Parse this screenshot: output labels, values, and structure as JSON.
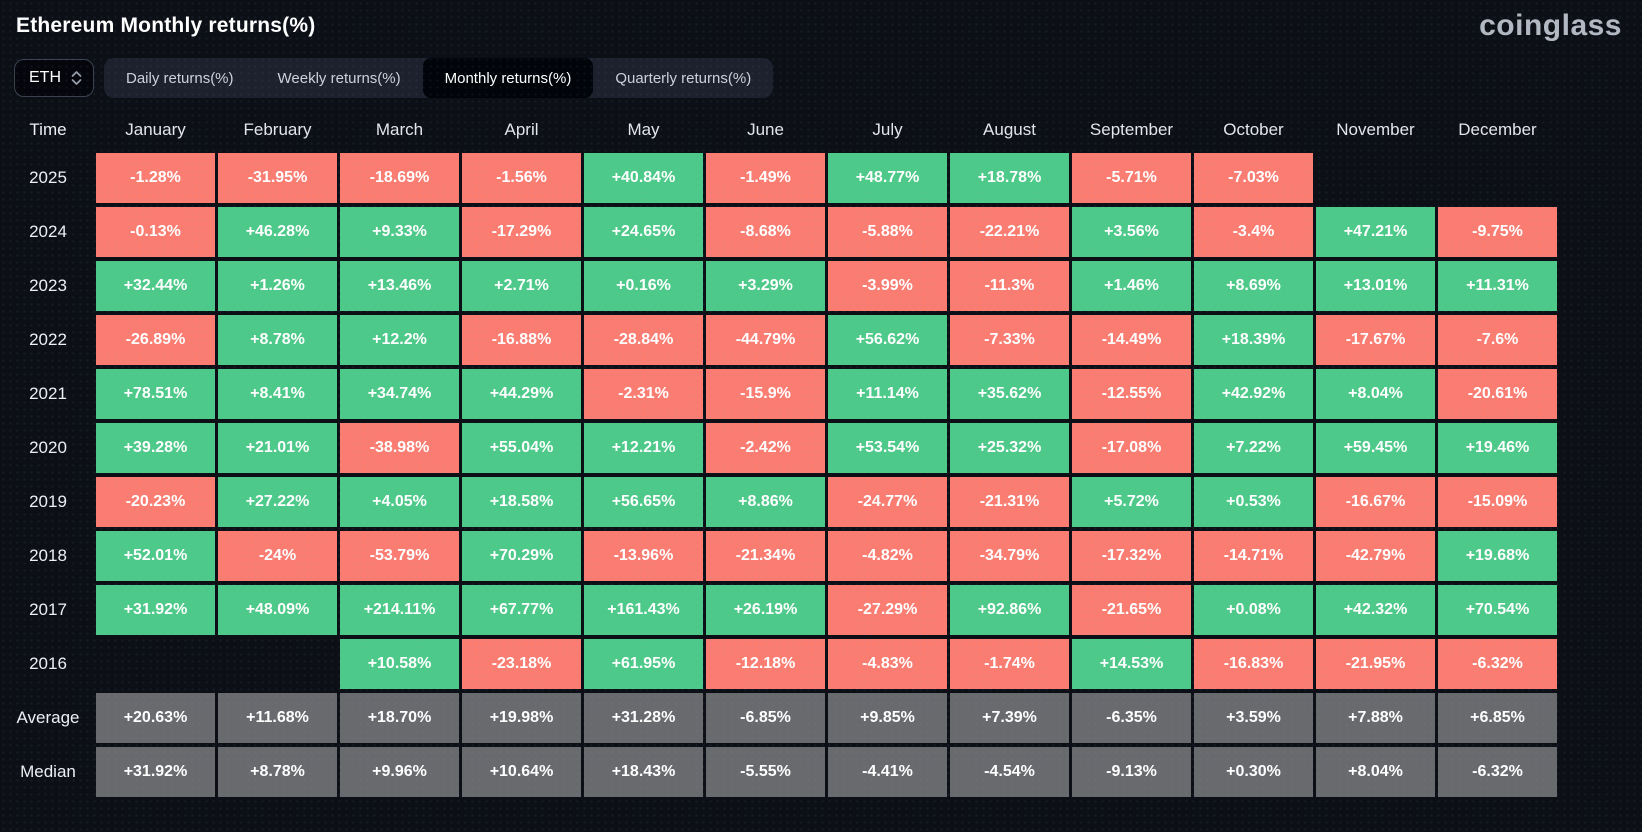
{
  "header": {
    "title": "Ethereum Monthly returns(%)",
    "logo_text": "coinglass"
  },
  "controls": {
    "symbol_select": {
      "value": "ETH"
    },
    "tabs": [
      {
        "label": "Daily returns(%)",
        "active": false
      },
      {
        "label": "Weekly returns(%)",
        "active": false
      },
      {
        "label": "Monthly returns(%)",
        "active": true
      },
      {
        "label": "Quarterly returns(%)",
        "active": false
      }
    ]
  },
  "colors": {
    "positive": "#4dca89",
    "negative": "#fb7d72",
    "summary_row": "#696a6e",
    "background": "#0c0f16",
    "tabbar_bg": "#1c212d",
    "active_tab_bg": "#010409"
  },
  "chart_data": {
    "type": "table",
    "title": "Ethereum Monthly returns(%)",
    "columns": [
      "Time",
      "January",
      "February",
      "March",
      "April",
      "May",
      "June",
      "July",
      "August",
      "September",
      "October",
      "November",
      "December"
    ],
    "rows": [
      {
        "label": "2025",
        "summary": false,
        "values": [
          "-1.28%",
          "-31.95%",
          "-18.69%",
          "-1.56%",
          "+40.84%",
          "-1.49%",
          "+48.77%",
          "+18.78%",
          "-5.71%",
          "-7.03%",
          "",
          ""
        ]
      },
      {
        "label": "2024",
        "summary": false,
        "values": [
          "-0.13%",
          "+46.28%",
          "+9.33%",
          "-17.29%",
          "+24.65%",
          "-8.68%",
          "-5.88%",
          "-22.21%",
          "+3.56%",
          "-3.4%",
          "+47.21%",
          "-9.75%"
        ]
      },
      {
        "label": "2023",
        "summary": false,
        "values": [
          "+32.44%",
          "+1.26%",
          "+13.46%",
          "+2.71%",
          "+0.16%",
          "+3.29%",
          "-3.99%",
          "-11.3%",
          "+1.46%",
          "+8.69%",
          "+13.01%",
          "+11.31%"
        ]
      },
      {
        "label": "2022",
        "summary": false,
        "values": [
          "-26.89%",
          "+8.78%",
          "+12.2%",
          "-16.88%",
          "-28.84%",
          "-44.79%",
          "+56.62%",
          "-7.33%",
          "-14.49%",
          "+18.39%",
          "-17.67%",
          "-7.6%"
        ]
      },
      {
        "label": "2021",
        "summary": false,
        "values": [
          "+78.51%",
          "+8.41%",
          "+34.74%",
          "+44.29%",
          "-2.31%",
          "-15.9%",
          "+11.14%",
          "+35.62%",
          "-12.55%",
          "+42.92%",
          "+8.04%",
          "-20.61%"
        ]
      },
      {
        "label": "2020",
        "summary": false,
        "values": [
          "+39.28%",
          "+21.01%",
          "-38.98%",
          "+55.04%",
          "+12.21%",
          "-2.42%",
          "+53.54%",
          "+25.32%",
          "-17.08%",
          "+7.22%",
          "+59.45%",
          "+19.46%"
        ]
      },
      {
        "label": "2019",
        "summary": false,
        "values": [
          "-20.23%",
          "+27.22%",
          "+4.05%",
          "+18.58%",
          "+56.65%",
          "+8.86%",
          "-24.77%",
          "-21.31%",
          "+5.72%",
          "+0.53%",
          "-16.67%",
          "-15.09%"
        ]
      },
      {
        "label": "2018",
        "summary": false,
        "values": [
          "+52.01%",
          "-24%",
          "-53.79%",
          "+70.29%",
          "-13.96%",
          "-21.34%",
          "-4.82%",
          "-34.79%",
          "-17.32%",
          "-14.71%",
          "-42.79%",
          "+19.68%"
        ]
      },
      {
        "label": "2017",
        "summary": false,
        "values": [
          "+31.92%",
          "+48.09%",
          "+214.11%",
          "+67.77%",
          "+161.43%",
          "+26.19%",
          "-27.29%",
          "+92.86%",
          "-21.65%",
          "+0.08%",
          "+42.32%",
          "+70.54%"
        ]
      },
      {
        "label": "2016",
        "summary": false,
        "values": [
          "",
          "",
          "+10.58%",
          "-23.18%",
          "+61.95%",
          "-12.18%",
          "-4.83%",
          "-1.74%",
          "+14.53%",
          "-16.83%",
          "-21.95%",
          "-6.32%"
        ]
      },
      {
        "label": "Average",
        "summary": true,
        "values": [
          "+20.63%",
          "+11.68%",
          "+18.70%",
          "+19.98%",
          "+31.28%",
          "-6.85%",
          "+9.85%",
          "+7.39%",
          "-6.35%",
          "+3.59%",
          "+7.88%",
          "+6.85%"
        ]
      },
      {
        "label": "Median",
        "summary": true,
        "values": [
          "+31.92%",
          "+8.78%",
          "+9.96%",
          "+10.64%",
          "+18.43%",
          "-5.55%",
          "-4.41%",
          "-4.54%",
          "-9.13%",
          "+0.30%",
          "+8.04%",
          "-6.32%"
        ]
      }
    ]
  }
}
